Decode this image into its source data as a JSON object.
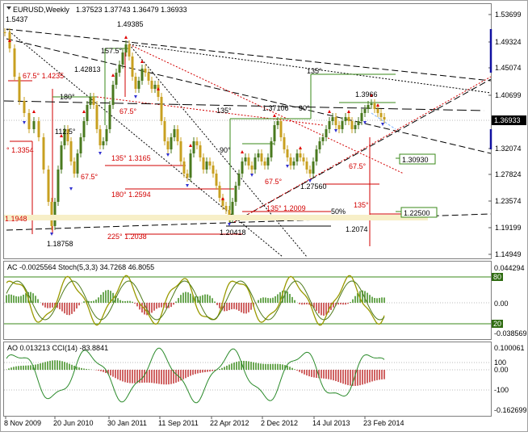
{
  "main_chart": {
    "symbol_title": "EURUSD,Weekly",
    "ohlc": "1.37523 1.37743 1.36479 1.36933",
    "current_price": "1.36933",
    "top_left_label": "1.5437",
    "price_levels": [
      "1.53699",
      "1.49324",
      "1.45074",
      "1.40699",
      "1.36933",
      "1.32074",
      "1.27824",
      "1.23574",
      "1.19199",
      "1.14949"
    ],
    "labels_black": [
      {
        "t": "1.49385"
      },
      {
        "t": "1.42813"
      },
      {
        "t": "157.5°"
      },
      {
        "t": "180°"
      },
      {
        "t": "112.5°"
      },
      {
        "t": "135°"
      },
      {
        "t": "1.37106"
      },
      {
        "t": "90°"
      },
      {
        "t": "135°"
      },
      {
        "t": "1.3966"
      },
      {
        "t": "90°"
      },
      {
        "t": "1.27560"
      },
      {
        "t": "1.20418"
      },
      {
        "t": "1.2074"
      },
      {
        "t": "1.18758"
      },
      {
        "t": "50%"
      }
    ],
    "labels_red": [
      {
        "t": "67.5° 1.4235"
      },
      {
        "t": "67.5°"
      },
      {
        "t": "° 1.3354"
      },
      {
        "t": "135° 1.3165"
      },
      {
        "t": "67.5°"
      },
      {
        "t": "180° 1.2594"
      },
      {
        "t": "225° 1.2038"
      },
      {
        "t": "1.1948"
      },
      {
        "t": "67.5°"
      },
      {
        "t": "135° 1.2009"
      },
      {
        "t": "67.5°"
      },
      {
        "t": "135°"
      }
    ],
    "boxed_levels": [
      {
        "t": "1.30930"
      },
      {
        "t": "1.22500"
      }
    ]
  },
  "ac_panel": {
    "title": "AC -0.0025564 Stoch(5,3,3) 34.7268 46.8055",
    "scale": [
      "0.044294",
      "80",
      "0.00",
      "20",
      "-0.038569"
    ]
  },
  "ao_panel": {
    "title": "AO 0.013213 CCI(14) -83.8841",
    "scale": [
      "0.100061",
      "100",
      "0.00",
      "-100",
      "-0.162699"
    ]
  },
  "x_axis": [
    "8 Nov 2009",
    "20 Jun 2010",
    "30 Jan 2011",
    "11 Sep 2011",
    "22 Apr 2012",
    "2 Dec 2012",
    "14 Jul 2013",
    "23 Feb 2014"
  ],
  "colors": {
    "bull_candle": "#4a7a1f",
    "bear_candle": "#c8a020",
    "red_line": "#d20000",
    "current_price_bg": "#000000",
    "indicator_green": "#3a8a1a",
    "indicator_olive": "#9a9a00",
    "histogram_red": "#c03030"
  }
}
